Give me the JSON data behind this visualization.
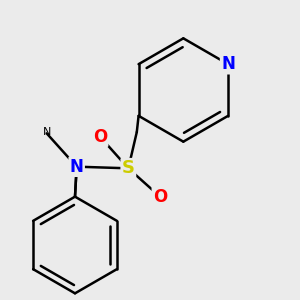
{
  "background_color": "#ebebeb",
  "atom_colors": {
    "N": "#0000FF",
    "S": "#CCCC00",
    "O": "#FF0000",
    "C": "#000000"
  },
  "bond_color": "#000000",
  "bond_width": 1.8,
  "fig_size": [
    3.0,
    3.0
  ],
  "dpi": 100
}
